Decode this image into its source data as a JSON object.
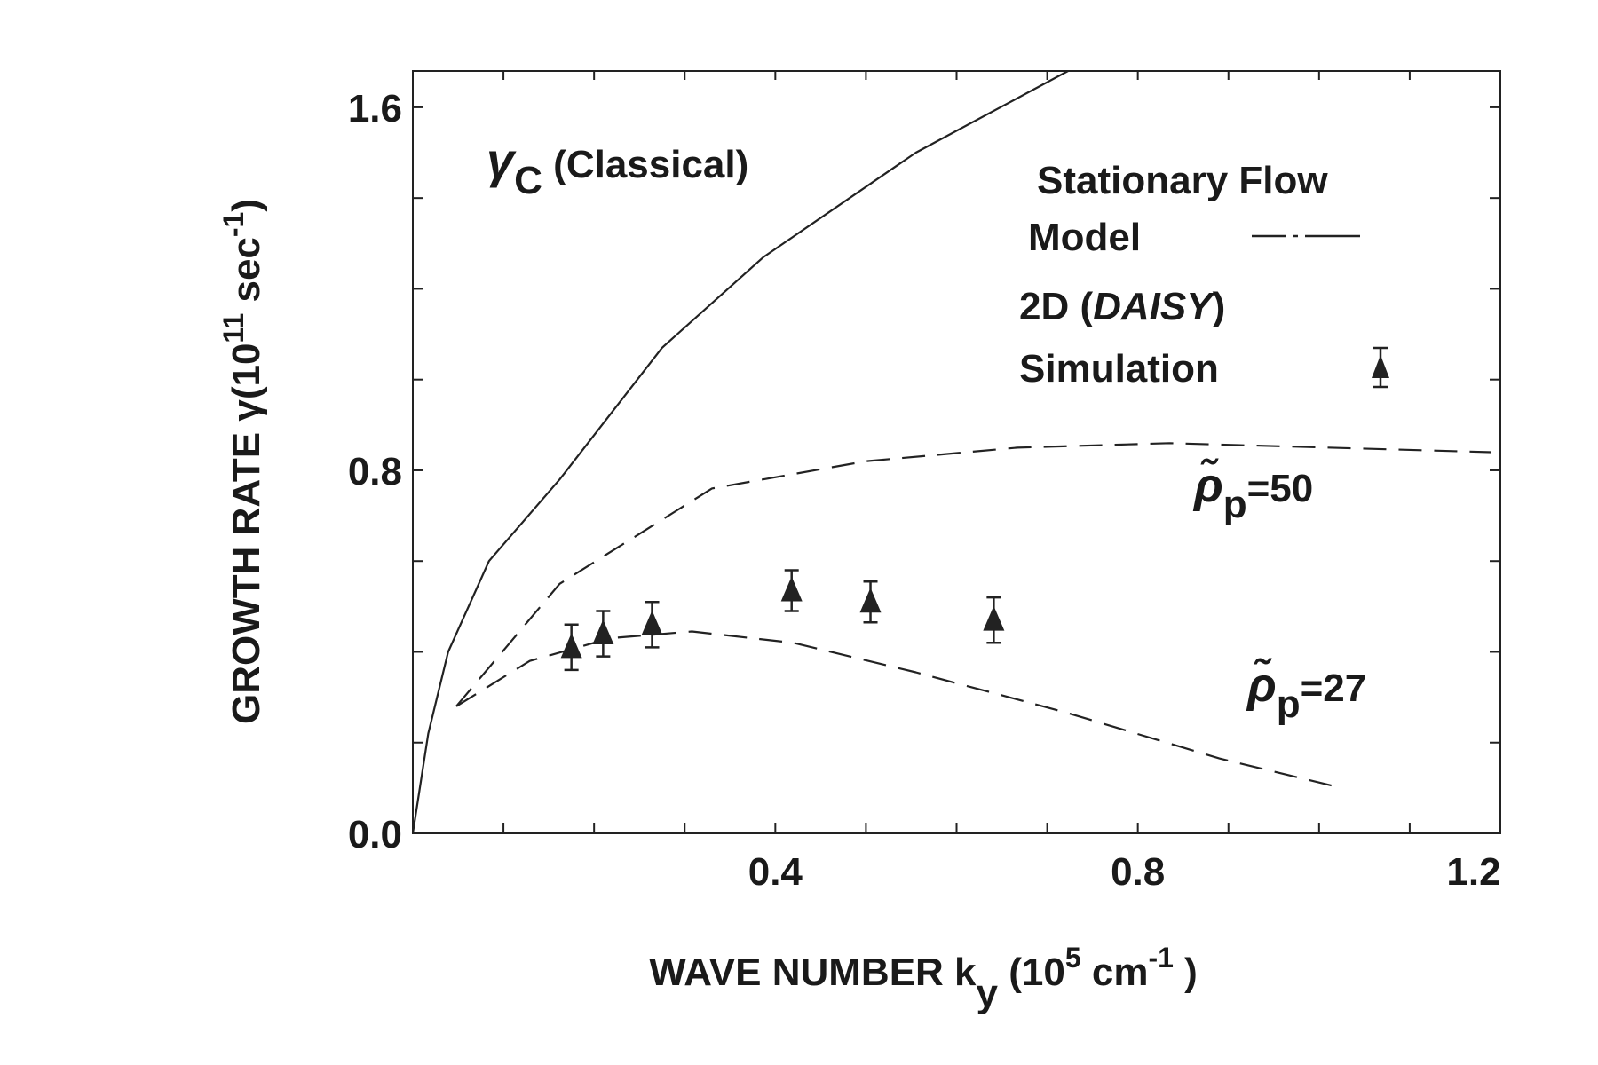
{
  "chart_data": {
    "type": "line",
    "title": "",
    "xlabel": {
      "main": "WAVE NUMBER k",
      "sub": "y",
      "rest": " (10",
      "exp": "5",
      "unit": " cm",
      "unitexp": "-1",
      "close": " )"
    },
    "ylabel": {
      "main": "GROWTH RATE γ(10",
      "exp": "11",
      "unit": " sec",
      "unitexp": "-1",
      "close": ")"
    },
    "xlim": [
      0,
      1.2
    ],
    "ylim": [
      0,
      1.68
    ],
    "xticks": [
      {
        "v": 0.4,
        "label": "0.4"
      },
      {
        "v": 0.8,
        "label": "0.8"
      },
      {
        "v": 1.2,
        "label": "1.2"
      }
    ],
    "yticks": [
      {
        "v": 0,
        "label": "0.0"
      },
      {
        "v": 0.8,
        "label": "0.8"
      },
      {
        "v": 1.6,
        "label": "1.6"
      }
    ],
    "grid": false,
    "series": [
      {
        "name": "γC (Classical)",
        "style": "solid",
        "x": [
          0,
          0.017,
          0.039,
          0.084,
          0.162,
          0.275,
          0.387,
          0.555,
          0.723
        ],
        "y": [
          0,
          0.22,
          0.4,
          0.6,
          0.78,
          1.07,
          1.27,
          1.5,
          1.68
        ]
      },
      {
        "name": "ρp=50",
        "style": "dashed",
        "x": [
          0.048,
          0.162,
          0.33,
          0.5,
          0.667,
          0.835,
          1.19
        ],
        "y": [
          0.28,
          0.55,
          0.76,
          0.82,
          0.85,
          0.86,
          0.84
        ]
      },
      {
        "name": "ρp=27",
        "style": "dashed",
        "x": [
          0.048,
          0.129,
          0.218,
          0.308,
          0.42,
          0.555,
          0.723,
          0.89,
          1.025
        ],
        "y": [
          0.28,
          0.38,
          0.43,
          0.445,
          0.42,
          0.355,
          0.265,
          0.165,
          0.1
        ]
      },
      {
        "name": "2D (DAISY) Simulation",
        "style": "triangle-errorbar",
        "x": [
          0.175,
          0.21,
          0.264,
          0.418,
          0.505,
          0.641
        ],
        "y": [
          0.41,
          0.44,
          0.46,
          0.535,
          0.51,
          0.47
        ],
        "err": [
          0.05,
          0.05,
          0.05,
          0.045,
          0.045,
          0.05
        ]
      }
    ],
    "annotations": {
      "classical": {
        "gamma": "γ",
        "sub": "C",
        "text": " (Classical)"
      },
      "rho50": {
        "rho": "ρ̃",
        "sub": "p",
        "text": "=50"
      },
      "rho27": {
        "rho": "ρ̃",
        "sub": "p",
        "text": "=27"
      }
    },
    "legend": {
      "placement": "top-right",
      "line1": "Stationary Flow",
      "line2": "Model",
      "line3": "2D (",
      "line3i": "DAISY",
      "line3c": ")",
      "line4": "Simulation"
    }
  }
}
